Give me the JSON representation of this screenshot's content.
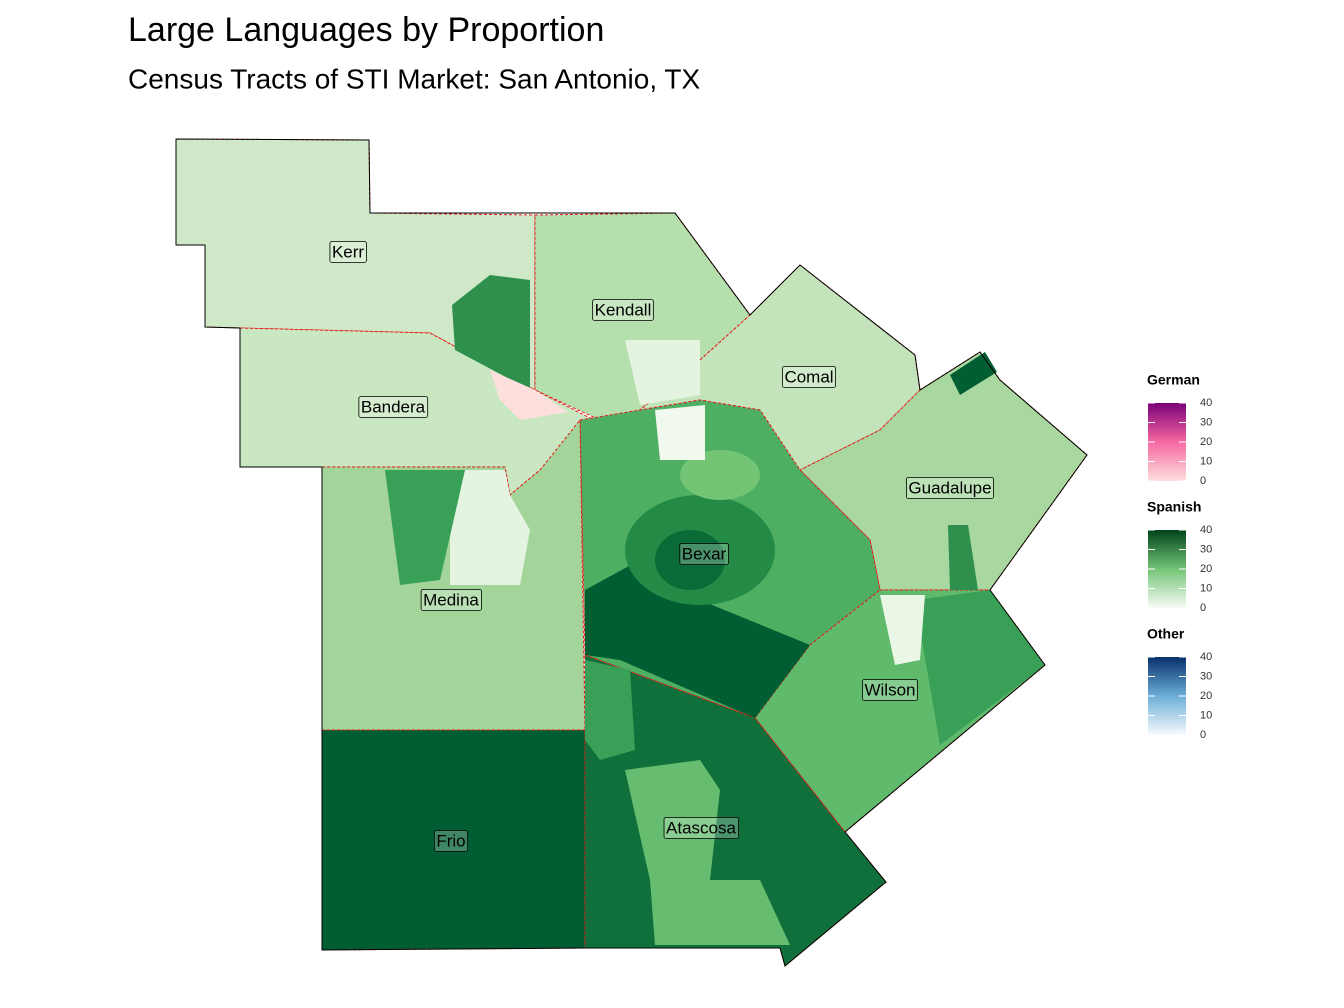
{
  "chart_data": {
    "type": "choropleth",
    "title": "Large Languages by Proportion",
    "subtitle": "Census Tracts of STI Market: San Antonio, TX",
    "regions": [
      "Kerr",
      "Kendall",
      "Bandera",
      "Comal",
      "Guadalupe",
      "Bexar",
      "Medina",
      "Wilson",
      "Frio",
      "Atascosa"
    ],
    "legends": [
      {
        "title": "German",
        "colors": [
          "#fde0dd",
          "#f768a1",
          "#7a0177"
        ],
        "lim": [
          0,
          40
        ],
        "ticks": [
          0,
          10,
          20,
          30,
          40
        ]
      },
      {
        "title": "Spanish",
        "colors": [
          "#f7fcf5",
          "#74c476",
          "#00441b"
        ],
        "lim": [
          0,
          40
        ],
        "ticks": [
          0,
          10,
          20,
          30,
          40
        ]
      },
      {
        "title": "Other",
        "colors": [
          "#f7fbff",
          "#6baed6",
          "#08306b"
        ],
        "lim": [
          0,
          40
        ],
        "ticks": [
          0,
          10,
          20,
          30,
          40
        ]
      }
    ]
  }
}
